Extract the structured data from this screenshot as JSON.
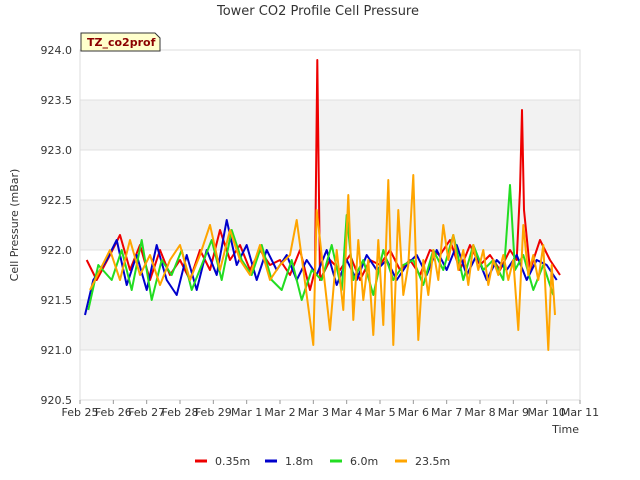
{
  "chart_data": {
    "type": "line",
    "title": "Tower CO2 Profile Cell Pressure",
    "badge": "TZ_co2prof",
    "xlabel": "Time",
    "ylabel": "Cell Pressure (mBar)",
    "xlim": [
      0,
      15
    ],
    "ylim": [
      920.5,
      924.0
    ],
    "x_ticks": [
      {
        "v": 0,
        "label": "Feb 25"
      },
      {
        "v": 1,
        "label": "Feb 26"
      },
      {
        "v": 2,
        "label": "Feb 27"
      },
      {
        "v": 3,
        "label": "Feb 28"
      },
      {
        "v": 4,
        "label": "Feb 29"
      },
      {
        "v": 5,
        "label": "Mar 1"
      },
      {
        "v": 6,
        "label": "Mar 2"
      },
      {
        "v": 7,
        "label": "Mar 3"
      },
      {
        "v": 8,
        "label": "Mar 4"
      },
      {
        "v": 9,
        "label": "Mar 5"
      },
      {
        "v": 10,
        "label": "Mar 6"
      },
      {
        "v": 11,
        "label": "Mar 7"
      },
      {
        "v": 12,
        "label": "Mar 8"
      },
      {
        "v": 13,
        "label": "Mar 9"
      },
      {
        "v": 14,
        "label": "Mar 10"
      },
      {
        "v": 15,
        "label": "Mar 11"
      }
    ],
    "y_ticks": [
      {
        "v": 920.5,
        "label": "920.5"
      },
      {
        "v": 921.0,
        "label": "921.0"
      },
      {
        "v": 921.5,
        "label": "921.5"
      },
      {
        "v": 922.0,
        "label": "922.0"
      },
      {
        "v": 922.5,
        "label": "922.5"
      },
      {
        "v": 923.0,
        "label": "923.0"
      },
      {
        "v": 923.5,
        "label": "923.5"
      },
      {
        "v": 924.0,
        "label": "924.0"
      }
    ],
    "series": [
      {
        "name": "0.35m",
        "color": "#ee0000",
        "x": [
          0.2,
          0.5,
          0.9,
          1.2,
          1.5,
          1.8,
          2.1,
          2.4,
          2.7,
          3.0,
          3.3,
          3.6,
          3.9,
          4.2,
          4.5,
          4.8,
          5.1,
          5.4,
          5.7,
          6.0,
          6.3,
          6.6,
          6.9,
          7.05,
          7.12,
          7.2,
          7.5,
          7.8,
          8.1,
          8.4,
          8.7,
          9.0,
          9.3,
          9.6,
          9.9,
          10.2,
          10.5,
          10.8,
          11.1,
          11.4,
          11.7,
          12.0,
          12.3,
          12.6,
          12.9,
          13.1,
          13.2,
          13.26,
          13.32,
          13.5,
          13.8,
          14.1,
          14.4
        ],
        "y": [
          921.9,
          921.7,
          921.95,
          922.15,
          921.8,
          922.05,
          921.7,
          922.0,
          921.75,
          921.9,
          921.7,
          922.0,
          921.8,
          922.2,
          921.9,
          922.05,
          921.8,
          922.0,
          921.85,
          921.9,
          921.75,
          922.0,
          921.6,
          921.8,
          923.9,
          921.7,
          921.9,
          921.8,
          921.95,
          921.7,
          921.9,
          921.85,
          922.0,
          921.8,
          921.9,
          921.75,
          922.0,
          921.95,
          922.1,
          921.8,
          922.05,
          921.85,
          921.95,
          921.8,
          922.0,
          921.9,
          922.6,
          923.4,
          922.4,
          921.8,
          922.1,
          921.9,
          921.75
        ]
      },
      {
        "name": "1.8m",
        "color": "#0000cc",
        "x": [
          0.15,
          0.4,
          0.8,
          1.1,
          1.4,
          1.7,
          2.0,
          2.3,
          2.6,
          2.9,
          3.2,
          3.5,
          3.8,
          4.1,
          4.4,
          4.7,
          5.0,
          5.3,
          5.6,
          5.9,
          6.2,
          6.5,
          6.8,
          7.1,
          7.4,
          7.7,
          8.0,
          8.3,
          8.6,
          8.9,
          9.2,
          9.5,
          9.8,
          10.1,
          10.4,
          10.7,
          11.0,
          11.3,
          11.6,
          11.9,
          12.2,
          12.5,
          12.8,
          13.1,
          13.4,
          13.7,
          14.0,
          14.3
        ],
        "y": [
          921.35,
          921.7,
          921.9,
          922.1,
          921.65,
          921.95,
          921.6,
          922.05,
          921.7,
          921.55,
          921.95,
          921.6,
          922.0,
          921.75,
          922.3,
          921.85,
          922.05,
          921.7,
          922.0,
          921.8,
          921.95,
          921.7,
          921.9,
          921.75,
          922.0,
          921.65,
          921.9,
          921.7,
          921.95,
          921.8,
          921.9,
          921.7,
          921.85,
          921.95,
          921.75,
          922.0,
          921.8,
          922.05,
          921.75,
          921.95,
          921.7,
          921.9,
          921.8,
          921.95,
          921.7,
          921.9,
          921.85,
          921.7
        ]
      },
      {
        "name": "6.0m",
        "color": "#22dd22",
        "x": [
          0.25,
          0.55,
          0.95,
          1.25,
          1.55,
          1.85,
          2.15,
          2.45,
          2.75,
          3.05,
          3.35,
          3.65,
          3.95,
          4.25,
          4.55,
          4.85,
          5.15,
          5.45,
          5.75,
          6.05,
          6.35,
          6.65,
          6.95,
          7.25,
          7.55,
          7.85,
          8.0,
          8.2,
          8.5,
          8.8,
          9.1,
          9.4,
          9.7,
          10.0,
          10.3,
          10.6,
          10.9,
          11.2,
          11.5,
          11.8,
          12.1,
          12.4,
          12.7,
          12.9,
          13.05,
          13.3,
          13.6,
          13.9,
          14.2
        ],
        "y": [
          921.4,
          921.85,
          921.7,
          922.0,
          921.6,
          922.1,
          921.5,
          921.9,
          921.75,
          922.0,
          921.6,
          921.85,
          922.1,
          921.7,
          922.2,
          921.9,
          921.75,
          922.05,
          921.7,
          921.6,
          921.9,
          921.5,
          921.8,
          921.7,
          922.05,
          921.6,
          922.35,
          921.7,
          921.9,
          921.55,
          922.0,
          921.7,
          921.85,
          921.9,
          921.65,
          922.0,
          921.8,
          922.15,
          921.7,
          922.05,
          921.8,
          921.9,
          921.7,
          922.65,
          921.8,
          921.95,
          921.6,
          921.85,
          921.55
        ]
      },
      {
        "name": "23.5m",
        "color": "#ffa500",
        "x": [
          0.3,
          0.6,
          0.9,
          1.2,
          1.5,
          1.8,
          2.1,
          2.4,
          2.7,
          3.0,
          3.3,
          3.6,
          3.9,
          4.2,
          4.5,
          4.8,
          5.1,
          5.4,
          5.7,
          6.0,
          6.3,
          6.5,
          6.8,
          7.0,
          7.1,
          7.3,
          7.5,
          7.7,
          7.9,
          8.05,
          8.2,
          8.35,
          8.5,
          8.65,
          8.8,
          8.95,
          9.1,
          9.25,
          9.4,
          9.55,
          9.7,
          9.85,
          10.0,
          10.15,
          10.3,
          10.45,
          10.6,
          10.75,
          10.9,
          11.05,
          11.2,
          11.35,
          11.5,
          11.65,
          11.8,
          11.95,
          12.1,
          12.25,
          12.4,
          12.55,
          12.7,
          12.85,
          13.0,
          13.15,
          13.3,
          13.45,
          13.6,
          13.75,
          13.9,
          14.05,
          14.15,
          14.25
        ],
        "y": [
          921.6,
          921.8,
          922.0,
          921.7,
          922.1,
          921.75,
          921.95,
          921.65,
          921.9,
          922.05,
          921.7,
          921.95,
          922.25,
          921.8,
          922.2,
          921.9,
          921.75,
          922.05,
          921.7,
          921.85,
          921.95,
          922.3,
          921.55,
          921.05,
          922.4,
          921.8,
          921.2,
          922.0,
          921.4,
          922.55,
          921.3,
          922.1,
          921.5,
          921.9,
          921.15,
          922.1,
          921.25,
          922.7,
          921.05,
          922.4,
          921.55,
          921.85,
          922.75,
          921.1,
          921.9,
          921.55,
          922.0,
          921.7,
          922.25,
          921.9,
          922.15,
          921.8,
          922.0,
          921.65,
          922.05,
          921.8,
          922.0,
          921.65,
          921.9,
          921.75,
          921.95,
          921.7,
          921.9,
          921.2,
          922.25,
          921.75,
          921.95,
          921.7,
          922.05,
          921.0,
          921.85,
          921.35
        ]
      }
    ]
  }
}
